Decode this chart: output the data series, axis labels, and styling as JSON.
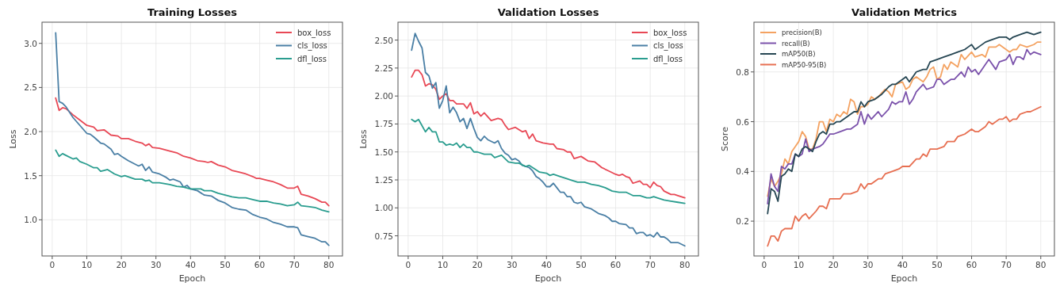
{
  "chart_data": [
    {
      "type": "line",
      "title": "Training Losses",
      "xlabel": "Epoch",
      "ylabel": "Loss",
      "xlim": [
        -2.95,
        83.95
      ],
      "ylim": [
        0.59,
        3.24
      ],
      "xticks": [
        0,
        10,
        20,
        30,
        40,
        50,
        60,
        70,
        80
      ],
      "yticks": [
        {
          "value": 1,
          "label": "1.0"
        },
        {
          "value": 1.5,
          "label": "1.5"
        },
        {
          "value": 2,
          "label": "2.0"
        },
        {
          "value": 2.5,
          "label": "2.5"
        },
        {
          "value": 3,
          "label": "3.0"
        }
      ],
      "grid": true,
      "legend": "top right",
      "marker": "none",
      "line_style": "solid",
      "series": [
        {
          "name": "box_loss",
          "color": "#e84855",
          "x": [
            1,
            2,
            3,
            4,
            6,
            8,
            10,
            12,
            13,
            15,
            17,
            19,
            20,
            22,
            24,
            26,
            27,
            28,
            29,
            31,
            34,
            36,
            38,
            40,
            42,
            44,
            45,
            46,
            48,
            50,
            52,
            54,
            56,
            58,
            59,
            60,
            62,
            64,
            66,
            68,
            70,
            71,
            72,
            74,
            76,
            78,
            79,
            80
          ],
          "values": [
            2.38,
            2.24,
            2.27,
            2.26,
            2.19,
            2.13,
            2.07,
            2.05,
            2.01,
            2.02,
            1.96,
            1.95,
            1.92,
            1.92,
            1.89,
            1.87,
            1.84,
            1.86,
            1.82,
            1.81,
            1.78,
            1.76,
            1.72,
            1.7,
            1.67,
            1.66,
            1.65,
            1.66,
            1.62,
            1.6,
            1.56,
            1.54,
            1.52,
            1.49,
            1.47,
            1.47,
            1.45,
            1.43,
            1.4,
            1.36,
            1.36,
            1.38,
            1.29,
            1.27,
            1.24,
            1.2,
            1.2,
            1.16
          ]
        },
        {
          "name": "cls_loss",
          "color": "#4a7fa5",
          "x": [
            1,
            2,
            3,
            4,
            6,
            8,
            10,
            11,
            12,
            14,
            15,
            17,
            18,
            19,
            20,
            22,
            24,
            25,
            26,
            27,
            28,
            29,
            31,
            33,
            34,
            35,
            37,
            38,
            39,
            40,
            42,
            44,
            46,
            48,
            50,
            52,
            54,
            56,
            58,
            60,
            62,
            64,
            66,
            68,
            70,
            71,
            72,
            74,
            76,
            78,
            79,
            80
          ],
          "values": [
            3.12,
            2.34,
            2.32,
            2.28,
            2.16,
            2.07,
            1.98,
            1.97,
            1.94,
            1.87,
            1.86,
            1.8,
            1.74,
            1.75,
            1.72,
            1.67,
            1.63,
            1.61,
            1.63,
            1.56,
            1.6,
            1.54,
            1.52,
            1.48,
            1.45,
            1.46,
            1.43,
            1.37,
            1.39,
            1.35,
            1.33,
            1.28,
            1.27,
            1.22,
            1.19,
            1.14,
            1.12,
            1.11,
            1.06,
            1.03,
            1.01,
            0.97,
            0.95,
            0.92,
            0.92,
            0.91,
            0.83,
            0.81,
            0.79,
            0.75,
            0.75,
            0.71
          ]
        },
        {
          "name": "dfl_loss",
          "color": "#2a9d8f",
          "x": [
            1,
            2,
            3,
            4,
            6,
            7,
            8,
            10,
            12,
            13,
            14,
            15,
            16,
            18,
            20,
            21,
            24,
            26,
            27,
            28,
            29,
            31,
            34,
            36,
            38,
            40,
            43,
            44,
            46,
            48,
            50,
            52,
            54,
            56,
            58,
            60,
            62,
            64,
            66,
            68,
            70,
            71,
            72,
            74,
            76,
            78,
            80
          ],
          "values": [
            1.79,
            1.72,
            1.75,
            1.73,
            1.69,
            1.7,
            1.66,
            1.63,
            1.59,
            1.59,
            1.55,
            1.56,
            1.57,
            1.52,
            1.49,
            1.5,
            1.46,
            1.46,
            1.44,
            1.45,
            1.42,
            1.42,
            1.4,
            1.38,
            1.37,
            1.35,
            1.35,
            1.33,
            1.33,
            1.3,
            1.28,
            1.26,
            1.25,
            1.25,
            1.23,
            1.21,
            1.21,
            1.19,
            1.18,
            1.16,
            1.17,
            1.2,
            1.16,
            1.15,
            1.14,
            1.11,
            1.09
          ]
        }
      ]
    },
    {
      "type": "line",
      "title": "Validation Losses",
      "xlabel": "Epoch",
      "ylabel": "Loss",
      "xlim": [
        -2.95,
        83.95
      ],
      "ylim": [
        0.57,
        2.66
      ],
      "xticks": [
        0,
        10,
        20,
        30,
        40,
        50,
        60,
        70,
        80
      ],
      "yticks": [
        0.75,
        {
          "value": 1,
          "label": "1.00"
        },
        1.25,
        {
          "value": 1.5,
          "label": "1.50"
        },
        1.75,
        {
          "value": 2,
          "label": "2.00"
        },
        2.25,
        {
          "value": 2.5,
          "label": "2.50"
        }
      ],
      "grid": true,
      "legend": "top right",
      "marker": "none",
      "line_style": "solid",
      "series": [
        {
          "name": "box_loss",
          "color": "#e84855",
          "x": [
            1,
            2,
            3,
            4,
            5,
            6,
            7,
            8,
            9,
            10,
            11,
            12,
            13,
            14,
            16,
            17,
            18,
            19,
            20,
            21,
            22,
            24,
            26,
            27,
            28,
            29,
            31,
            32,
            33,
            34,
            35,
            36,
            37,
            39,
            41,
            42,
            43,
            45,
            46,
            47,
            48,
            50,
            52,
            54,
            56,
            58,
            60,
            61,
            62,
            63,
            64,
            65,
            67,
            68,
            69,
            70,
            71,
            72,
            73,
            74,
            76,
            77,
            78,
            80
          ],
          "values": [
            2.17,
            2.23,
            2.23,
            2.19,
            2.09,
            2.11,
            2.1,
            2.06,
            1.97,
            2,
            2.02,
            1.96,
            1.96,
            1.93,
            1.93,
            1.89,
            1.94,
            1.84,
            1.86,
            1.82,
            1.85,
            1.78,
            1.8,
            1.79,
            1.74,
            1.7,
            1.72,
            1.7,
            1.68,
            1.69,
            1.62,
            1.66,
            1.6,
            1.58,
            1.57,
            1.57,
            1.53,
            1.52,
            1.5,
            1.5,
            1.44,
            1.46,
            1.42,
            1.41,
            1.36,
            1.33,
            1.3,
            1.29,
            1.3,
            1.28,
            1.27,
            1.22,
            1.24,
            1.21,
            1.21,
            1.18,
            1.23,
            1.2,
            1.19,
            1.15,
            1.12,
            1.12,
            1.11,
            1.09
          ]
        },
        {
          "name": "cls_loss",
          "color": "#4a7fa5",
          "x": [
            1,
            2,
            3,
            4,
            5,
            6,
            7,
            8,
            9,
            10,
            11,
            12,
            13,
            14,
            15,
            16,
            17,
            18,
            19,
            20,
            21,
            22,
            23,
            25,
            26,
            27,
            28,
            29,
            30,
            31,
            32,
            33,
            35,
            36,
            37,
            38,
            39,
            40,
            41,
            42,
            43,
            44,
            45,
            46,
            47,
            48,
            49,
            50,
            51,
            53,
            55,
            57,
            58,
            59,
            60,
            61,
            63,
            64,
            65,
            66,
            67,
            68,
            69,
            70,
            71,
            72,
            73,
            74,
            75,
            76,
            78,
            80
          ],
          "values": [
            2.41,
            2.56,
            2.49,
            2.43,
            2.21,
            2.18,
            2.07,
            2.12,
            1.89,
            1.96,
            2.09,
            1.85,
            1.9,
            1.85,
            1.77,
            1.8,
            1.71,
            1.8,
            1.71,
            1.63,
            1.6,
            1.64,
            1.61,
            1.58,
            1.6,
            1.53,
            1.49,
            1.47,
            1.43,
            1.44,
            1.42,
            1.38,
            1.36,
            1.33,
            1.28,
            1.26,
            1.23,
            1.19,
            1.19,
            1.22,
            1.18,
            1.14,
            1.14,
            1.1,
            1.1,
            1.05,
            1.04,
            1.05,
            1.01,
            0.99,
            0.95,
            0.93,
            0.91,
            0.88,
            0.88,
            0.86,
            0.85,
            0.82,
            0.82,
            0.77,
            0.78,
            0.78,
            0.75,
            0.76,
            0.74,
            0.78,
            0.74,
            0.74,
            0.72,
            0.69,
            0.69,
            0.66
          ]
        },
        {
          "name": "dfl_loss",
          "color": "#2a9d8f",
          "x": [
            1,
            2,
            3,
            5,
            6,
            7,
            8,
            9,
            10,
            11,
            12,
            13,
            14,
            15,
            16,
            17,
            18,
            19,
            20,
            22,
            24,
            25,
            26,
            27,
            29,
            31,
            32,
            34,
            35,
            36,
            38,
            40,
            41,
            42,
            44,
            46,
            47,
            49,
            51,
            53,
            55,
            57,
            59,
            61,
            63,
            65,
            67,
            69,
            70,
            71,
            72,
            74,
            76,
            78,
            80
          ],
          "values": [
            1.79,
            1.77,
            1.79,
            1.68,
            1.72,
            1.68,
            1.68,
            1.59,
            1.59,
            1.56,
            1.57,
            1.56,
            1.58,
            1.54,
            1.57,
            1.54,
            1.54,
            1.5,
            1.5,
            1.48,
            1.48,
            1.45,
            1.46,
            1.47,
            1.41,
            1.4,
            1.4,
            1.37,
            1.38,
            1.36,
            1.32,
            1.31,
            1.29,
            1.3,
            1.28,
            1.26,
            1.25,
            1.23,
            1.23,
            1.21,
            1.2,
            1.18,
            1.15,
            1.14,
            1.14,
            1.11,
            1.11,
            1.09,
            1.09,
            1.1,
            1.09,
            1.07,
            1.06,
            1.05,
            1.04
          ]
        }
      ]
    },
    {
      "type": "line",
      "title": "Validation Metrics",
      "xlabel": "Epoch",
      "ylabel": "Score",
      "xlim": [
        -2.95,
        83.95
      ],
      "ylim": [
        0.06,
        1.0
      ],
      "xticks": [
        0,
        10,
        20,
        30,
        40,
        50,
        60,
        70,
        80
      ],
      "yticks": [
        0.2,
        0.4,
        0.6,
        0.8
      ],
      "grid": true,
      "legend": "top left",
      "marker": "none",
      "line_style": "solid",
      "series": [
        {
          "name": "precision(B)",
          "color": "#f4a261",
          "x": [
            1,
            2,
            3,
            4,
            5,
            6,
            7,
            8,
            9,
            10,
            11,
            12,
            13,
            14,
            15,
            16,
            17,
            18,
            19,
            20,
            21,
            22,
            23,
            24,
            25,
            26,
            27,
            28,
            29,
            30,
            31,
            32,
            33,
            35,
            36,
            37,
            38,
            40,
            41,
            42,
            43,
            44,
            46,
            47,
            48,
            49,
            50,
            51,
            52,
            53,
            54,
            55,
            56,
            57,
            58,
            60,
            61,
            63,
            64,
            65,
            67,
            68,
            70,
            71,
            72,
            73,
            74,
            76,
            78,
            79,
            80
          ],
          "values": [
            0.3,
            0.37,
            0.34,
            0.36,
            0.39,
            0.45,
            0.43,
            0.48,
            0.5,
            0.52,
            0.56,
            0.54,
            0.49,
            0.49,
            0.53,
            0.6,
            0.6,
            0.56,
            0.61,
            0.6,
            0.63,
            0.62,
            0.64,
            0.63,
            0.69,
            0.68,
            0.63,
            0.66,
            0.66,
            0.67,
            0.7,
            0.69,
            0.7,
            0.73,
            0.72,
            0.7,
            0.75,
            0.76,
            0.73,
            0.74,
            0.77,
            0.78,
            0.76,
            0.78,
            0.81,
            0.82,
            0.77,
            0.78,
            0.83,
            0.81,
            0.84,
            0.83,
            0.82,
            0.87,
            0.85,
            0.88,
            0.86,
            0.87,
            0.86,
            0.9,
            0.9,
            0.91,
            0.89,
            0.88,
            0.89,
            0.89,
            0.91,
            0.9,
            0.91,
            0.92,
            0.92
          ]
        },
        {
          "name": "recall(B)",
          "color": "#7b52ab",
          "x": [
            1,
            2,
            3,
            4,
            5,
            6,
            7,
            8,
            9,
            10,
            11,
            12,
            13,
            14,
            16,
            17,
            18,
            19,
            20,
            22,
            24,
            25,
            27,
            28,
            29,
            30,
            31,
            33,
            34,
            36,
            37,
            38,
            39,
            40,
            41,
            42,
            43,
            44,
            46,
            47,
            49,
            50,
            51,
            52,
            54,
            55,
            57,
            58,
            59,
            60,
            61,
            62,
            64,
            65,
            67,
            68,
            70,
            71,
            72,
            73,
            74,
            75,
            76,
            77,
            78,
            80
          ],
          "values": [
            0.27,
            0.39,
            0.34,
            0.32,
            0.42,
            0.41,
            0.43,
            0.43,
            0.47,
            0.46,
            0.47,
            0.53,
            0.48,
            0.49,
            0.5,
            0.51,
            0.53,
            0.55,
            0.55,
            0.56,
            0.57,
            0.57,
            0.59,
            0.64,
            0.59,
            0.63,
            0.61,
            0.64,
            0.62,
            0.65,
            0.68,
            0.67,
            0.68,
            0.68,
            0.72,
            0.67,
            0.69,
            0.72,
            0.75,
            0.73,
            0.74,
            0.77,
            0.77,
            0.75,
            0.77,
            0.77,
            0.8,
            0.78,
            0.82,
            0.8,
            0.81,
            0.79,
            0.83,
            0.85,
            0.81,
            0.84,
            0.85,
            0.87,
            0.83,
            0.86,
            0.86,
            0.85,
            0.89,
            0.87,
            0.88,
            0.87
          ]
        },
        {
          "name": "mAP50(B)",
          "color": "#264653",
          "x": [
            1,
            2,
            3,
            4,
            5,
            6,
            7,
            8,
            9,
            10,
            11,
            12,
            13,
            14,
            15,
            16,
            17,
            18,
            19,
            20,
            21,
            22,
            24,
            26,
            27,
            28,
            29,
            30,
            32,
            34,
            36,
            37,
            38,
            40,
            41,
            42,
            44,
            46,
            47,
            48,
            50,
            52,
            54,
            56,
            58,
            59,
            60,
            61,
            62,
            64,
            66,
            68,
            70,
            71,
            72,
            74,
            76,
            78,
            80
          ],
          "values": [
            0.23,
            0.33,
            0.32,
            0.28,
            0.38,
            0.39,
            0.41,
            0.4,
            0.47,
            0.46,
            0.49,
            0.5,
            0.49,
            0.48,
            0.52,
            0.55,
            0.56,
            0.55,
            0.59,
            0.59,
            0.6,
            0.6,
            0.62,
            0.64,
            0.64,
            0.68,
            0.66,
            0.68,
            0.69,
            0.71,
            0.74,
            0.75,
            0.75,
            0.77,
            0.78,
            0.76,
            0.8,
            0.81,
            0.81,
            0.84,
            0.85,
            0.86,
            0.87,
            0.88,
            0.89,
            0.9,
            0.91,
            0.89,
            0.9,
            0.92,
            0.93,
            0.94,
            0.94,
            0.93,
            0.94,
            0.95,
            0.96,
            0.95,
            0.96
          ]
        },
        {
          "name": "mAP50-95(B)",
          "color": "#e76f51",
          "x": [
            1,
            2,
            3,
            4,
            5,
            6,
            8,
            9,
            10,
            11,
            12,
            13,
            15,
            16,
            17,
            18,
            19,
            21,
            22,
            23,
            25,
            27,
            28,
            29,
            30,
            31,
            33,
            34,
            35,
            37,
            39,
            40,
            41,
            42,
            44,
            45,
            46,
            47,
            48,
            49,
            50,
            52,
            53,
            55,
            56,
            58,
            60,
            61,
            62,
            64,
            65,
            66,
            68,
            69,
            70,
            71,
            72,
            73,
            74,
            76,
            77,
            80
          ],
          "values": [
            0.1,
            0.14,
            0.14,
            0.12,
            0.16,
            0.17,
            0.17,
            0.22,
            0.2,
            0.22,
            0.23,
            0.21,
            0.24,
            0.26,
            0.26,
            0.25,
            0.29,
            0.29,
            0.29,
            0.31,
            0.31,
            0.32,
            0.35,
            0.33,
            0.35,
            0.35,
            0.37,
            0.37,
            0.39,
            0.4,
            0.41,
            0.42,
            0.42,
            0.42,
            0.45,
            0.45,
            0.47,
            0.46,
            0.49,
            0.49,
            0.49,
            0.5,
            0.52,
            0.52,
            0.54,
            0.55,
            0.57,
            0.56,
            0.56,
            0.58,
            0.6,
            0.59,
            0.61,
            0.61,
            0.62,
            0.6,
            0.61,
            0.61,
            0.63,
            0.64,
            0.64,
            0.66
          ]
        }
      ]
    }
  ]
}
